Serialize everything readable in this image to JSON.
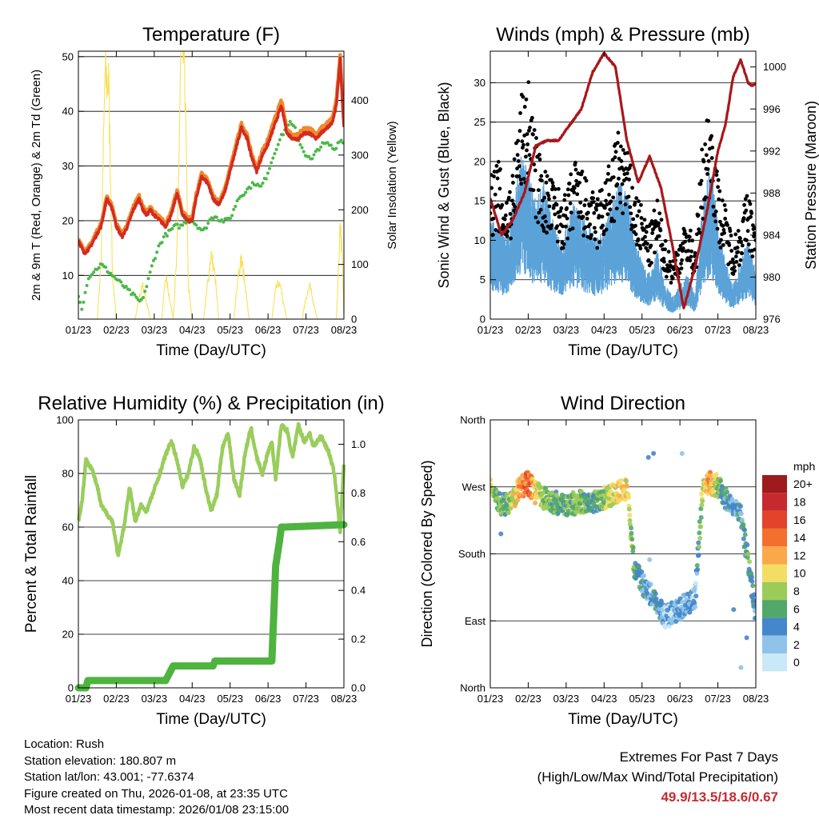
{
  "colors": {
    "temp2m": "#d42b20",
    "temp9m": "#f08a2c",
    "dewpoint": "#4bb848",
    "solar": "#f7e15b",
    "gust": "#000000",
    "wind": "#5aa2d8",
    "pressure": "#a8171b",
    "rh": "#9acd5c",
    "precip": "#4fb33f",
    "accent": "#c62a2f"
  },
  "chart_data": [
    {
      "id": "temperature",
      "type": "line",
      "title": "Temperature (F)",
      "xlabel": "Time (Day/UTC)",
      "ylabel": "2m & 9m T (Red, Orange) & 2m Td (Green)",
      "y2label": "Solar Insolation (Yellow)",
      "xticks": [
        "01/23",
        "02/23",
        "03/23",
        "04/23",
        "05/23",
        "06/23",
        "07/23",
        "08/23"
      ],
      "xlim": [
        0,
        7
      ],
      "ylim": [
        2,
        51
      ],
      "yticks": [
        10,
        20,
        30,
        40,
        50
      ],
      "y2lim": [
        0,
        490
      ],
      "y2ticks": [
        0,
        100,
        200,
        300,
        400
      ],
      "series": [
        {
          "name": "2m T",
          "axis": "left",
          "x": [
            0,
            0.15,
            0.3,
            0.45,
            0.6,
            0.75,
            0.9,
            1.0,
            1.15,
            1.3,
            1.45,
            1.6,
            1.7,
            1.8,
            1.9,
            2.0,
            2.15,
            2.3,
            2.45,
            2.6,
            2.75,
            2.9,
            3.0,
            3.1,
            3.25,
            3.4,
            3.55,
            3.7,
            3.85,
            4.0,
            4.15,
            4.3,
            4.45,
            4.55,
            4.7,
            4.85,
            5.0,
            5.1,
            5.2,
            5.35,
            5.5,
            5.65,
            5.8,
            5.95,
            6.1,
            6.25,
            6.4,
            6.55,
            6.7,
            6.8,
            6.9,
            7.0
          ],
          "values": [
            16.5,
            14,
            15,
            17,
            19,
            24,
            22,
            19,
            17,
            19,
            22,
            24,
            22,
            21,
            22,
            21,
            20,
            19,
            21,
            25,
            21,
            20,
            20,
            24,
            28,
            27,
            24,
            23,
            25,
            29,
            33,
            37,
            35,
            32,
            29,
            32,
            34,
            36,
            38,
            41,
            36,
            35,
            35,
            36,
            36,
            35,
            36,
            37,
            38,
            41,
            49.5,
            37
          ]
        },
        {
          "name": "9m T",
          "axis": "left",
          "x": [
            0,
            0.15,
            0.3,
            0.45,
            0.6,
            0.75,
            0.9,
            1.0,
            1.15,
            1.3,
            1.45,
            1.6,
            1.7,
            1.8,
            1.9,
            2.0,
            2.15,
            2.3,
            2.45,
            2.6,
            2.75,
            2.9,
            3.0,
            3.1,
            3.25,
            3.4,
            3.55,
            3.7,
            3.85,
            4.0,
            4.15,
            4.3,
            4.45,
            4.55,
            4.7,
            4.85,
            5.0,
            5.1,
            5.2,
            5.35,
            5.5,
            5.65,
            5.8,
            5.95,
            6.1,
            6.25,
            6.4,
            6.55,
            6.7,
            6.8,
            6.9,
            7.0
          ],
          "values": [
            16.8,
            14.4,
            15.4,
            17.5,
            19.5,
            24.4,
            22.5,
            19.4,
            17.5,
            19.5,
            22.6,
            24.6,
            22.5,
            21.5,
            22.4,
            21.5,
            20.5,
            19.5,
            21.6,
            25.6,
            21.5,
            20.5,
            20.5,
            24.6,
            28.6,
            27.5,
            24.5,
            23.5,
            25.5,
            29.6,
            33.8,
            37.7,
            35.6,
            32.6,
            29.6,
            32.8,
            34.8,
            37,
            39,
            42,
            36.6,
            35.6,
            35.8,
            36.8,
            36.8,
            35.8,
            36.8,
            37.8,
            38.8,
            42,
            50,
            38
          ]
        },
        {
          "name": "2m Td",
          "axis": "left",
          "x": [
            0,
            0.1,
            0.2,
            0.3,
            0.45,
            0.6,
            0.75,
            0.9,
            1.05,
            1.2,
            1.35,
            1.5,
            1.65,
            1.8,
            1.95,
            2.1,
            2.25,
            2.4,
            2.55,
            2.7,
            2.85,
            3.0,
            3.15,
            3.3,
            3.45,
            3.6,
            3.75,
            3.9,
            4.05,
            4.2,
            4.35,
            4.5,
            4.65,
            4.8,
            4.95,
            5.1,
            5.25,
            5.4,
            5.55,
            5.7,
            5.85,
            6.0,
            6.15,
            6.3,
            6.45,
            6.6,
            6.75,
            6.9,
            7.0
          ],
          "values": [
            6,
            4,
            8,
            10,
            11,
            12,
            11,
            10,
            9,
            8,
            7,
            6,
            5,
            8,
            12,
            15,
            17,
            18,
            19,
            19,
            20,
            20,
            19,
            18,
            20,
            21,
            20,
            20,
            21,
            24,
            25,
            26,
            27,
            26,
            28,
            31,
            34,
            36,
            38,
            37,
            34,
            32,
            31,
            33,
            34,
            34,
            33,
            35,
            34
          ]
        },
        {
          "name": "Solar",
          "axis": "right",
          "x": [
            0,
            0.5,
            0.6,
            0.7,
            0.8,
            0.9,
            1.0,
            1.5,
            1.6,
            1.7,
            1.8,
            1.9,
            2.0,
            2.2,
            2.3,
            2.5,
            2.6,
            2.7,
            2.8,
            2.9,
            3.0,
            3.3,
            3.4,
            3.5,
            3.6,
            3.7,
            4.1,
            4.2,
            4.3,
            4.4,
            4.5,
            5.1,
            5.2,
            5.3,
            5.4,
            5.5,
            5.9,
            6.0,
            6.1,
            6.2,
            6.3,
            6.8,
            6.85,
            6.9,
            6.95,
            7.0
          ],
          "values": [
            0,
            0,
            110,
            440,
            430,
            80,
            0,
            0,
            40,
            60,
            30,
            0,
            0,
            0,
            80,
            0,
            120,
            470,
            480,
            60,
            0,
            0,
            60,
            120,
            80,
            0,
            0,
            80,
            110,
            60,
            0,
            0,
            60,
            70,
            30,
            0,
            0,
            40,
            60,
            30,
            0,
            0,
            80,
            180,
            120,
            0
          ]
        }
      ]
    },
    {
      "id": "winds",
      "type": "line",
      "title": "Winds (mph) & Pressure (mb)",
      "xlabel": "Time (Day/UTC)",
      "ylabel": "Sonic Wind & Gust (Blue, Black)",
      "y2label": "Station Pressure (Maroon)",
      "xticks": [
        "01/23",
        "02/23",
        "03/23",
        "04/23",
        "05/23",
        "06/23",
        "07/23",
        "08/23"
      ],
      "xlim": [
        0,
        7
      ],
      "ylim": [
        0,
        34
      ],
      "yticks": [
        0,
        5,
        10,
        15,
        20,
        25,
        30
      ],
      "y2lim": [
        976,
        1001.5
      ],
      "y2ticks": [
        976,
        980,
        984,
        988,
        992,
        996,
        1000
      ],
      "series": [
        {
          "name": "Sonic Wind",
          "axis": "left",
          "x": [
            0,
            0.2,
            0.4,
            0.6,
            0.8,
            1.0,
            1.2,
            1.4,
            1.6,
            1.8,
            2.0,
            2.2,
            2.4,
            2.6,
            2.8,
            3.0,
            3.2,
            3.4,
            3.6,
            3.8,
            4.0,
            4.2,
            4.4,
            4.6,
            4.8,
            5.0,
            5.2,
            5.4,
            5.6,
            5.8,
            6.0,
            6.2,
            6.4,
            6.6,
            6.8,
            7.0
          ],
          "values": [
            9,
            8,
            7,
            10,
            14,
            13,
            10,
            12,
            9,
            7,
            8,
            10,
            9,
            8,
            7,
            8,
            10,
            12,
            11,
            7,
            5,
            4,
            6,
            3,
            2,
            3,
            4,
            2,
            10,
            14,
            8,
            5,
            3,
            5,
            7,
            4
          ]
        },
        {
          "name": "Gust",
          "axis": "left",
          "x": [
            0,
            0.2,
            0.4,
            0.6,
            0.8,
            1.0,
            1.2,
            1.4,
            1.6,
            1.8,
            2.0,
            2.2,
            2.4,
            2.6,
            2.8,
            3.0,
            3.2,
            3.4,
            3.6,
            3.8,
            4.0,
            4.2,
            4.4,
            4.6,
            4.8,
            5.0,
            5.2,
            5.4,
            5.6,
            5.8,
            6.0,
            6.2,
            6.4,
            6.6,
            6.8,
            7.0
          ],
          "values": [
            14,
            16,
            12,
            15,
            22,
            24,
            18,
            15,
            14,
            13,
            12,
            16,
            15,
            13,
            12,
            14,
            16,
            19,
            17,
            13,
            11,
            9,
            12,
            8,
            6,
            8,
            10,
            7,
            18,
            22,
            14,
            11,
            8,
            10,
            13,
            9
          ]
        },
        {
          "name": "Pressure",
          "axis": "right",
          "x": [
            0,
            0.3,
            0.6,
            0.9,
            1.2,
            1.5,
            1.8,
            2.1,
            2.4,
            2.7,
            3.0,
            3.3,
            3.6,
            3.9,
            4.2,
            4.5,
            4.8,
            5.1,
            5.4,
            5.7,
            6.0,
            6.2,
            6.4,
            6.6,
            6.8,
            6.9,
            7.0
          ],
          "values": [
            987.5,
            984,
            985.5,
            988,
            992.5,
            993,
            993,
            994.5,
            996,
            999.5,
            1001.3,
            1000,
            993,
            989,
            991.5,
            988.5,
            983,
            977,
            981,
            986,
            992,
            994.5,
            999,
            1000.7,
            998.5,
            998.2,
            998.5
          ]
        }
      ]
    },
    {
      "id": "humidity",
      "type": "line",
      "title": "Relative Humidity (%) & Precipitation (in)",
      "xlabel": "Time (Day/UTC)",
      "ylabel": "Percent & Total Rainfall",
      "xticks": [
        "01/23",
        "02/23",
        "03/23",
        "04/23",
        "05/23",
        "06/23",
        "07/23",
        "08/23"
      ],
      "xlim": [
        0,
        7
      ],
      "ylim": [
        0,
        100
      ],
      "yticks": [
        0,
        20,
        40,
        60,
        80,
        100
      ],
      "y2lim": [
        0,
        1.1
      ],
      "y2ticks": [
        0.0,
        0.2,
        0.4,
        0.6,
        0.8,
        1.0
      ],
      "series": [
        {
          "name": "RH",
          "axis": "left",
          "x": [
            0,
            0.1,
            0.2,
            0.35,
            0.5,
            0.6,
            0.75,
            0.9,
            1.05,
            1.2,
            1.35,
            1.5,
            1.65,
            1.8,
            1.95,
            2.1,
            2.3,
            2.45,
            2.6,
            2.75,
            2.9,
            3.05,
            3.2,
            3.35,
            3.5,
            3.65,
            3.8,
            3.95,
            4.1,
            4.25,
            4.4,
            4.55,
            4.7,
            4.85,
            5.0,
            5.1,
            5.2,
            5.35,
            5.5,
            5.65,
            5.8,
            5.95,
            6.1,
            6.2,
            6.4,
            6.6,
            6.75,
            6.9,
            7.0
          ],
          "values": [
            62,
            70,
            85,
            82,
            75,
            68,
            65,
            62,
            49,
            60,
            75,
            62,
            68,
            66,
            72,
            78,
            87,
            92,
            85,
            75,
            80,
            90,
            86,
            75,
            66,
            72,
            90,
            95,
            78,
            72,
            88,
            97,
            86,
            80,
            88,
            92,
            78,
            98,
            96,
            86,
            98,
            92,
            95,
            90,
            94,
            88,
            80,
            58,
            83
          ]
        },
        {
          "name": "Precip",
          "axis": "right",
          "x": [
            0,
            0.2,
            0.25,
            2.3,
            2.4,
            2.5,
            3.55,
            3.6,
            5.1,
            5.15,
            5.2,
            5.3,
            5.35,
            5.45,
            7.0
          ],
          "values": [
            0,
            0,
            0.03,
            0.03,
            0.06,
            0.09,
            0.09,
            0.11,
            0.11,
            0.3,
            0.5,
            0.6,
            0.66,
            0.66,
            0.67
          ]
        }
      ]
    },
    {
      "id": "direction",
      "type": "scatter",
      "title": "Wind Direction",
      "xlabel": "Time (Day/UTC)",
      "ylabel": "Direction (Colored By Speed)",
      "xticks": [
        "01/23",
        "02/23",
        "03/23",
        "04/23",
        "05/23",
        "06/23",
        "07/23",
        "08/23"
      ],
      "xlim": [
        0,
        7
      ],
      "yticks": [
        "North",
        "East",
        "South",
        "West",
        "North"
      ],
      "ylim": [
        0,
        360
      ],
      "legend": {
        "unit": "mph",
        "labels": [
          "20+",
          "18",
          "16",
          "14",
          "12",
          "10",
          "8",
          "6",
          "4",
          "2",
          "0"
        ],
        "colors": [
          "#9e1a1d",
          "#c62a2f",
          "#e2432a",
          "#f26f2d",
          "#f9a94a",
          "#f3dd64",
          "#9ccb58",
          "#52a86a",
          "#4587c8",
          "#8fc3ea",
          "#c9e9f9"
        ]
      },
      "series": [
        {
          "name": "Direction",
          "x": [
            0,
            0.2,
            0.4,
            0.6,
            0.8,
            1.0,
            1.2,
            1.4,
            1.6,
            1.8,
            2.0,
            2.2,
            2.4,
            2.6,
            2.8,
            3.0,
            3.2,
            3.4,
            3.6,
            3.8,
            4.0,
            4.2,
            4.4,
            4.6,
            4.8,
            5.0,
            5.2,
            5.4,
            5.6,
            5.8,
            6.0,
            6.2,
            6.4,
            6.6,
            6.8,
            7.0
          ],
          "values": [
            268,
            250,
            245,
            255,
            270,
            275,
            262,
            255,
            250,
            248,
            245,
            248,
            250,
            247,
            252,
            255,
            260,
            265,
            268,
            160,
            140,
            128,
            110,
            95,
            100,
            105,
            115,
            120,
            270,
            275,
            272,
            255,
            245,
            230,
            170,
            95
          ],
          "speeds": [
            9,
            7,
            6,
            9,
            13,
            15,
            10,
            8,
            7,
            6,
            6,
            7,
            7,
            6,
            6,
            7,
            9,
            11,
            10,
            6,
            4,
            3,
            4,
            2,
            2,
            3,
            3,
            2,
            9,
            13,
            7,
            4,
            3,
            4,
            6,
            3
          ]
        }
      ]
    }
  ],
  "info": {
    "location": "Location: Rush",
    "elevation": "Station elevation: 180.807 m",
    "latlon": "Station lat/lon: 43.001; -77.6374",
    "created": "Figure created on Thu, 2026-01-08, at 23:35 UTC",
    "recent": "Most recent data timestamp: 2026/01/08 23:15:00"
  },
  "extremes": {
    "title": "Extremes For Past 7 Days",
    "subtitle": "(High/Low/Max Wind/Total Precipitation)",
    "values": "49.9/13.5/18.6/0.67"
  }
}
